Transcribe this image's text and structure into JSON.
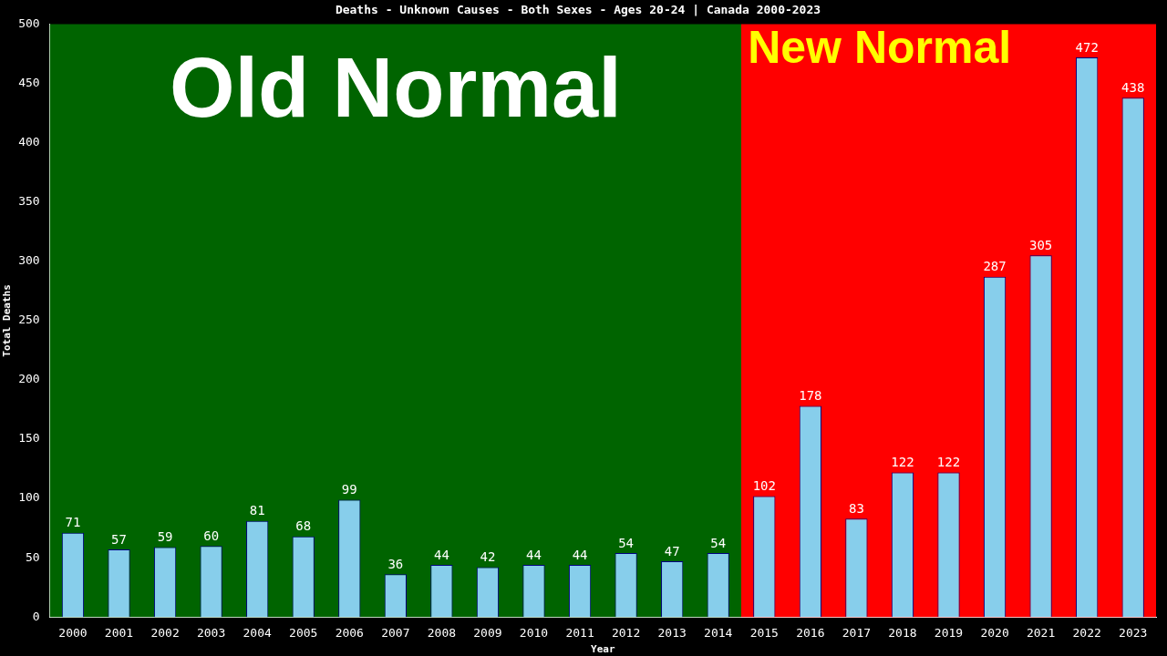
{
  "chart_data": {
    "type": "bar",
    "title": "Deaths - Unknown Causes - Both Sexes - Ages 20-24 | Canada 2000-2023",
    "xlabel": "Year",
    "ylabel": "Total Deaths",
    "categories": [
      "2000",
      "2001",
      "2002",
      "2003",
      "2004",
      "2005",
      "2006",
      "2007",
      "2008",
      "2009",
      "2010",
      "2011",
      "2012",
      "2013",
      "2014",
      "2015",
      "2016",
      "2017",
      "2018",
      "2019",
      "2020",
      "2021",
      "2022",
      "2023"
    ],
    "values": [
      71,
      57,
      59,
      60,
      81,
      68,
      99,
      36,
      44,
      42,
      44,
      44,
      54,
      47,
      54,
      102,
      178,
      83,
      122,
      122,
      287,
      305,
      472,
      438
    ],
    "color": "#87ceeb",
    "ylim": [
      0,
      500
    ],
    "yticks": [
      0,
      50,
      100,
      150,
      200,
      250,
      300,
      350,
      400,
      450,
      500
    ],
    "grid": false,
    "data_labels": true,
    "bands": [
      {
        "axis": "x",
        "from": "2000",
        "to": "2014",
        "label": "Old Normal",
        "color": "#006400"
      },
      {
        "axis": "x",
        "from": "2015",
        "to": "2023",
        "label": "New Normal",
        "color": "#ff0000"
      }
    ]
  }
}
